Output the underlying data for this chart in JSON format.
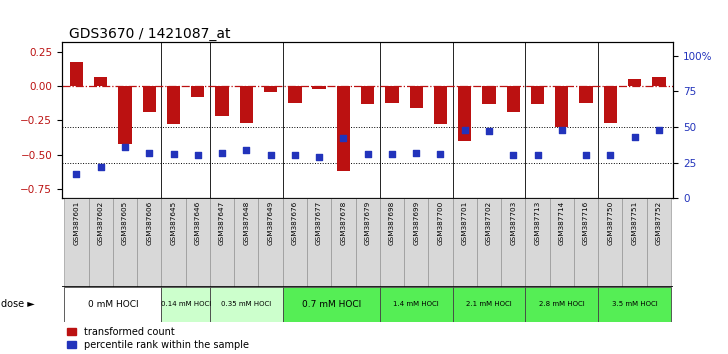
{
  "title": "GDS3670 / 1421087_at",
  "samples": [
    "GSM387601",
    "GSM387602",
    "GSM387605",
    "GSM387606",
    "GSM387645",
    "GSM387646",
    "GSM387647",
    "GSM387648",
    "GSM387649",
    "GSM387676",
    "GSM387677",
    "GSM387678",
    "GSM387679",
    "GSM387698",
    "GSM387699",
    "GSM387700",
    "GSM387701",
    "GSM387702",
    "GSM387703",
    "GSM387713",
    "GSM387714",
    "GSM387716",
    "GSM387750",
    "GSM387751",
    "GSM387752"
  ],
  "transformed_count": [
    0.18,
    0.07,
    -0.42,
    -0.19,
    -0.28,
    -0.08,
    -0.22,
    -0.27,
    -0.04,
    -0.12,
    -0.02,
    -0.62,
    -0.13,
    -0.12,
    -0.16,
    -0.28,
    -0.4,
    -0.13,
    -0.19,
    -0.13,
    -0.3,
    -0.12,
    -0.27,
    0.05,
    0.07
  ],
  "percentile_rank_pct": [
    17,
    22,
    36,
    32,
    31,
    30,
    32,
    34,
    30,
    30,
    29,
    42,
    31,
    31,
    32,
    31,
    48,
    47,
    30,
    30,
    48,
    30,
    30,
    43,
    48
  ],
  "dose_groups": [
    {
      "label": "0 mM HOCl",
      "start": 0,
      "end": 4,
      "color": "#ffffff"
    },
    {
      "label": "0.14 mM HOCl",
      "start": 4,
      "end": 6,
      "color": "#ccffcc"
    },
    {
      "label": "0.35 mM HOCl",
      "start": 6,
      "end": 9,
      "color": "#ccffcc"
    },
    {
      "label": "0.7 mM HOCl",
      "start": 9,
      "end": 13,
      "color": "#55ee55"
    },
    {
      "label": "1.4 mM HOCl",
      "start": 13,
      "end": 16,
      "color": "#55ee55"
    },
    {
      "label": "2.1 mM HOCl",
      "start": 16,
      "end": 19,
      "color": "#55ee55"
    },
    {
      "label": "2.8 mM HOCl",
      "start": 19,
      "end": 22,
      "color": "#55ee55"
    },
    {
      "label": "3.5 mM HOCl",
      "start": 22,
      "end": 25,
      "color": "#55ee55"
    }
  ],
  "bar_color": "#bb1111",
  "dot_color": "#2233bb",
  "bg_color": "#ffffff",
  "left_yticks": [
    -0.75,
    -0.5,
    -0.25,
    0,
    0.25
  ],
  "right_ytick_vals": [
    0,
    25,
    50,
    75,
    100
  ],
  "right_ytick_labels": [
    "0",
    "25",
    "50",
    "75",
    "100%"
  ],
  "ylim_left": [
    -0.82,
    0.32
  ],
  "ylim_right": [
    0,
    109.33
  ],
  "group_boundaries": [
    4,
    6,
    9,
    13,
    16,
    19,
    22
  ]
}
